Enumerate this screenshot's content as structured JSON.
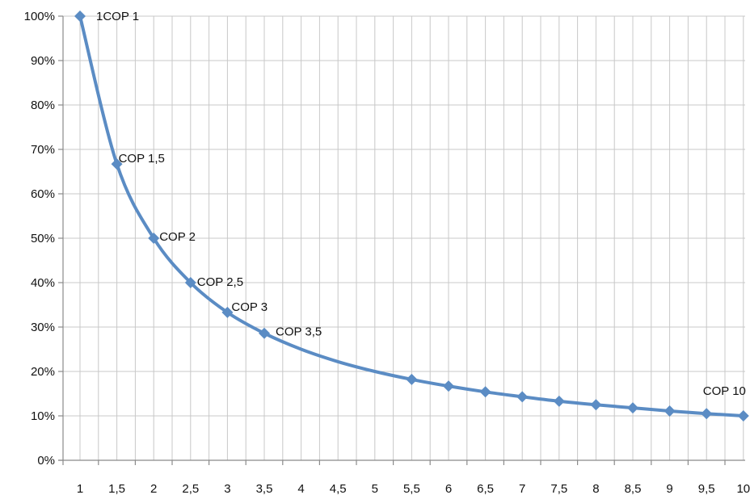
{
  "chart_data": {
    "type": "line",
    "title": "",
    "xlabel": "",
    "ylabel": "",
    "categories": [
      "1",
      "1,5",
      "2",
      "2,5",
      "3",
      "3,5",
      "4",
      "4,5",
      "5",
      "5,5",
      "6",
      "6,5",
      "7",
      "7,5",
      "8",
      "8,5",
      "9",
      "9,5",
      "10"
    ],
    "x": [
      1,
      1.5,
      2,
      2.5,
      3,
      3.5,
      4,
      4.5,
      5,
      5.5,
      6,
      6.5,
      7,
      7.5,
      8,
      8.5,
      9,
      9.5,
      10
    ],
    "series": [
      {
        "color": "#5b8cc4",
        "values": [
          1.0,
          0.667,
          0.5,
          0.4,
          0.333,
          0.286,
          0.25,
          0.222,
          0.2,
          0.182,
          0.167,
          0.154,
          0.143,
          0.133,
          0.125,
          0.118,
          0.111,
          0.105,
          0.1
        ],
        "markers": [
          true,
          true,
          true,
          true,
          true,
          true,
          false,
          false,
          false,
          true,
          true,
          true,
          true,
          true,
          true,
          true,
          true,
          true,
          true
        ]
      }
    ],
    "point_labels": [
      {
        "index": 0,
        "text": "1COP 1"
      },
      {
        "index": 1,
        "text": "COP 1,5"
      },
      {
        "index": 2,
        "text": "COP 2"
      },
      {
        "index": 3,
        "text": "COP 2,5"
      },
      {
        "index": 4,
        "text": "COP 3"
      },
      {
        "index": 5,
        "text": "COP 3,5"
      },
      {
        "index": 18,
        "text": "COP 10"
      }
    ],
    "yticks": [
      "0%",
      "10%",
      "20%",
      "30%",
      "40%",
      "50%",
      "60%",
      "70%",
      "80%",
      "90%",
      "100%"
    ],
    "ylim": [
      0,
      1
    ],
    "grid": true,
    "legend": "none"
  }
}
